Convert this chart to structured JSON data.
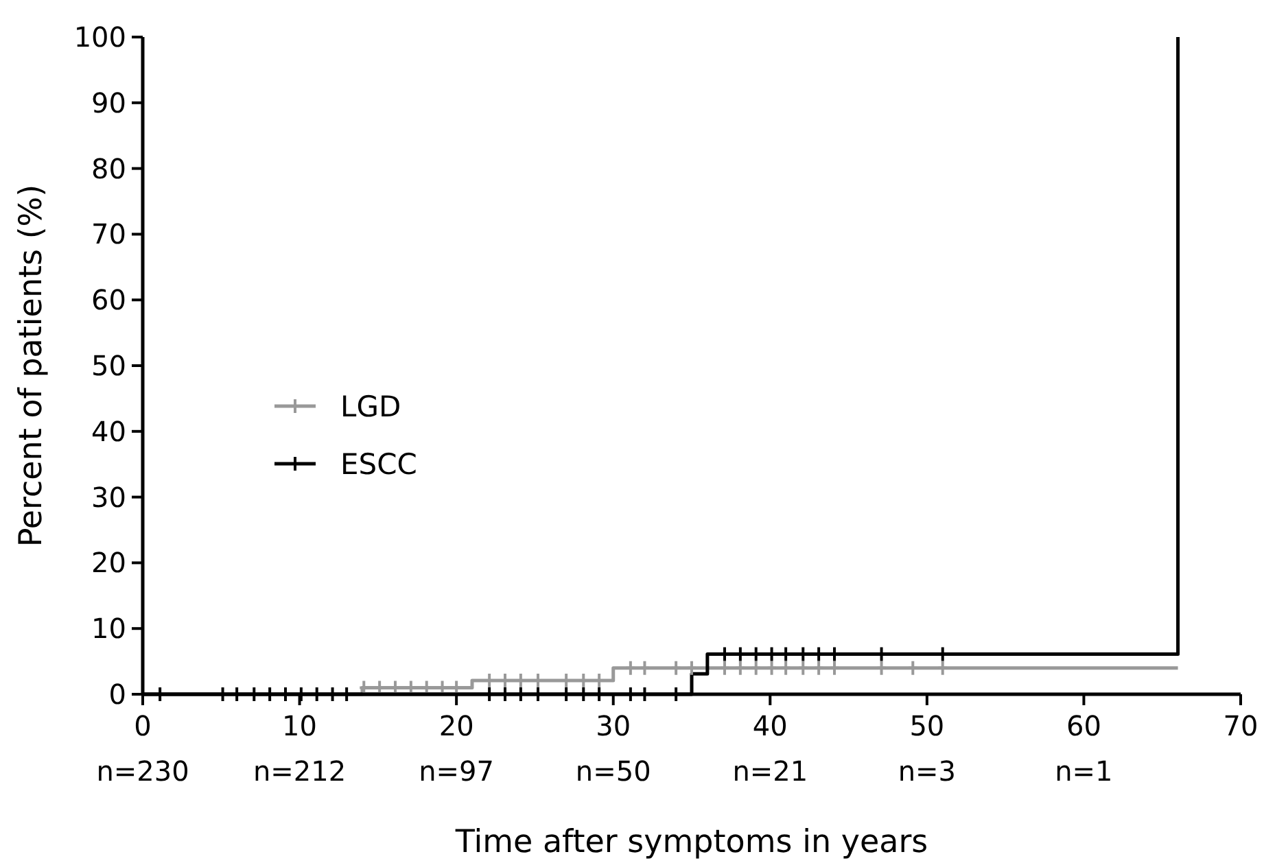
{
  "chart_data": {
    "type": "step",
    "xlabel": "Time after symptoms in years",
    "ylabel": "Percent of patients (%)",
    "xlim": [
      0,
      70
    ],
    "ylim": [
      0,
      100
    ],
    "xticks": [
      0,
      10,
      20,
      30,
      40,
      50,
      60,
      70
    ],
    "annotations": [
      "n=230",
      "n=212",
      "n=97",
      "n=50",
      "n=21",
      "n=3",
      "n=1"
    ],
    "yticks": [
      0,
      10,
      20,
      30,
      40,
      50,
      60,
      70,
      80,
      90,
      100
    ],
    "grid": false,
    "legend": "left",
    "line_style": "solid",
    "series": [
      {
        "name": "LGD",
        "color": "#999999",
        "x": [
          0,
          14,
          21,
          30,
          66
        ],
        "values": [
          0,
          1.0,
          2.1,
          4.0,
          4.0
        ]
      },
      {
        "name": "ESCC",
        "color": "#000000",
        "x": [
          0,
          35,
          36,
          66,
          66
        ],
        "values": [
          0,
          3.1,
          6.1,
          6.1,
          100
        ]
      },
      {
        "type": "scatter",
        "marker": "cross",
        "color": "#999999",
        "x": [
          14.1,
          15.1,
          16.1,
          17.1,
          18.1,
          19.1,
          20.0,
          22.1,
          23.1,
          24.1,
          25.2,
          27.0,
          28.1,
          29.1,
          31.1,
          32.0,
          34.0,
          35.0,
          37.1,
          38.1,
          39.1,
          40.1,
          41.0,
          42.1,
          43.1,
          44.1,
          47.1,
          49.1,
          51.0
        ],
        "values": [
          1.0,
          1.0,
          1.0,
          1.0,
          1.0,
          1.0,
          1.0,
          2.1,
          2.1,
          2.1,
          2.1,
          2.1,
          2.1,
          2.1,
          4.0,
          4.0,
          4.0,
          4.0,
          4.0,
          4.0,
          4.0,
          4.0,
          4.0,
          4.0,
          4.0,
          4.0,
          4.0,
          4.0,
          4.0
        ]
      },
      {
        "type": "scatter",
        "marker": "cross",
        "color": "#000000",
        "x": [
          1.1,
          5.1,
          6.0,
          7.1,
          8.1,
          9.1,
          10.1,
          11.1,
          12.1,
          13.0,
          22.1,
          23.1,
          24.1,
          25.2,
          27.0,
          28.1,
          29.1,
          31.1,
          32.0,
          34.0,
          37.1,
          38.1,
          39.1,
          40.1,
          41.0,
          42.1,
          43.1,
          44.1,
          47.1,
          51.0
        ],
        "values": [
          0,
          0,
          0,
          0,
          0,
          0,
          0,
          0,
          0,
          0,
          0,
          0,
          0,
          0,
          0,
          0,
          0,
          0,
          0,
          0,
          6.1,
          6.1,
          6.1,
          6.1,
          6.1,
          6.1,
          6.1,
          6.1,
          6.1,
          6.1
        ]
      }
    ]
  }
}
